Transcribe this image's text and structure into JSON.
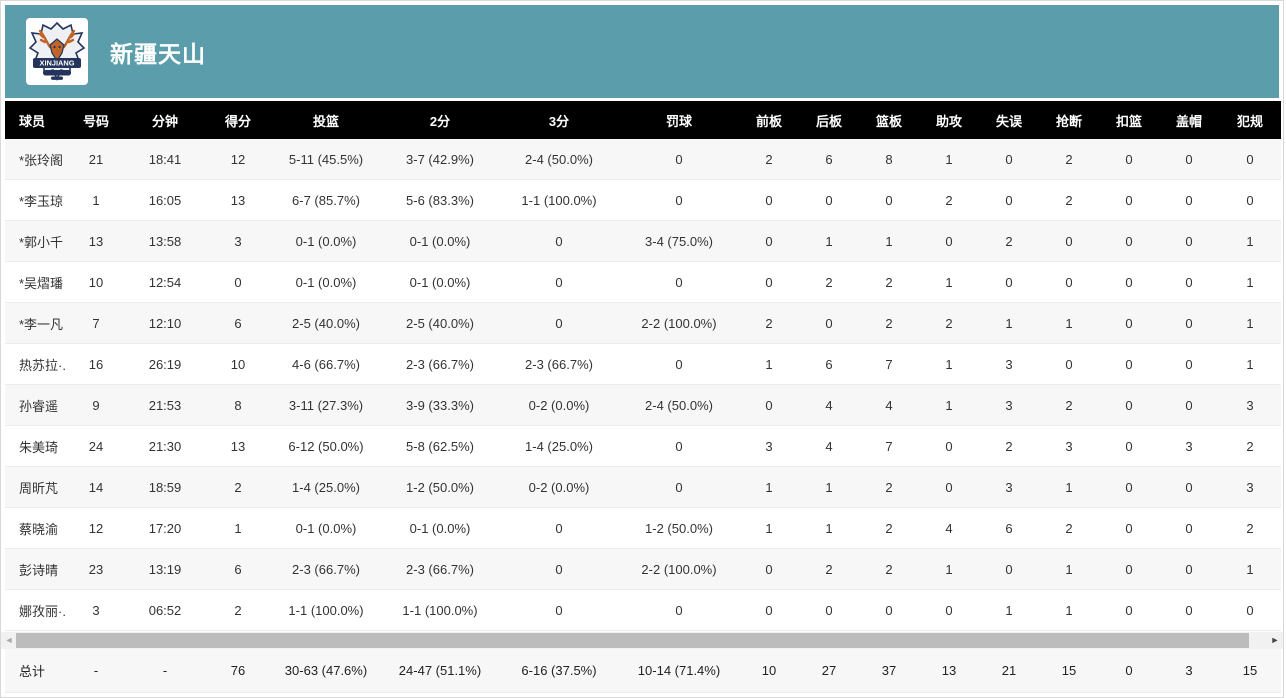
{
  "header": {
    "team_name": "新疆天山",
    "logo_text": "XINJIANG"
  },
  "colors": {
    "banner_teal": "#5c9dac",
    "table_header_bg": "#000000",
    "zebra_row": "#f7f7f7",
    "total_row_bg": "#ececec",
    "logo_navy": "#24345c",
    "logo_orange": "#c06428"
  },
  "table": {
    "columns": [
      {
        "key": "player",
        "label": "球员"
      },
      {
        "key": "number",
        "label": "号码"
      },
      {
        "key": "minutes",
        "label": "分钟"
      },
      {
        "key": "points",
        "label": "得分"
      },
      {
        "key": "fg",
        "label": "投篮"
      },
      {
        "key": "2pt",
        "label": "2分"
      },
      {
        "key": "3pt",
        "label": "3分"
      },
      {
        "key": "ft",
        "label": "罚球"
      },
      {
        "key": "oreb",
        "label": "前板"
      },
      {
        "key": "dreb",
        "label": "后板"
      },
      {
        "key": "reb",
        "label": "篮板"
      },
      {
        "key": "ast",
        "label": "助攻"
      },
      {
        "key": "tov",
        "label": "失误"
      },
      {
        "key": "stl",
        "label": "抢断"
      },
      {
        "key": "dunk",
        "label": "扣篮"
      },
      {
        "key": "blk",
        "label": "盖帽"
      },
      {
        "key": "pf",
        "label": "犯规"
      }
    ],
    "rows": [
      [
        "*张玲阁",
        "21",
        "18:41",
        "12",
        "5-11 (45.5%)",
        "3-7 (42.9%)",
        "2-4 (50.0%)",
        "0",
        "2",
        "6",
        "8",
        "1",
        "0",
        "2",
        "0",
        "0",
        "0"
      ],
      [
        "*李玉琼",
        "1",
        "16:05",
        "13",
        "6-7 (85.7%)",
        "5-6 (83.3%)",
        "1-1 (100.0%)",
        "0",
        "0",
        "0",
        "0",
        "2",
        "0",
        "2",
        "0",
        "0",
        "0"
      ],
      [
        "*郭小千",
        "13",
        "13:58",
        "3",
        "0-1 (0.0%)",
        "0-1 (0.0%)",
        "0",
        "3-4 (75.0%)",
        "0",
        "1",
        "1",
        "0",
        "2",
        "0",
        "0",
        "0",
        "1"
      ],
      [
        "*吴熠璠",
        "10",
        "12:54",
        "0",
        "0-1 (0.0%)",
        "0-1 (0.0%)",
        "0",
        "0",
        "0",
        "2",
        "2",
        "1",
        "0",
        "0",
        "0",
        "0",
        "1"
      ],
      [
        "*李一凡",
        "7",
        "12:10",
        "6",
        "2-5 (40.0%)",
        "2-5 (40.0%)",
        "0",
        "2-2 (100.0%)",
        "2",
        "0",
        "2",
        "2",
        "1",
        "1",
        "0",
        "0",
        "1"
      ],
      [
        "热苏拉·...",
        "16",
        "26:19",
        "10",
        "4-6 (66.7%)",
        "2-3 (66.7%)",
        "2-3 (66.7%)",
        "0",
        "1",
        "6",
        "7",
        "1",
        "3",
        "0",
        "0",
        "0",
        "1"
      ],
      [
        "孙睿遥",
        "9",
        "21:53",
        "8",
        "3-11 (27.3%)",
        "3-9 (33.3%)",
        "0-2 (0.0%)",
        "2-4 (50.0%)",
        "0",
        "4",
        "4",
        "1",
        "3",
        "2",
        "0",
        "0",
        "3"
      ],
      [
        "朱美琦",
        "24",
        "21:30",
        "13",
        "6-12 (50.0%)",
        "5-8 (62.5%)",
        "1-4 (25.0%)",
        "0",
        "3",
        "4",
        "7",
        "0",
        "2",
        "3",
        "0",
        "3",
        "2"
      ],
      [
        "周昕芃",
        "14",
        "18:59",
        "2",
        "1-4 (25.0%)",
        "1-2 (50.0%)",
        "0-2 (0.0%)",
        "0",
        "1",
        "1",
        "2",
        "0",
        "3",
        "1",
        "0",
        "0",
        "3"
      ],
      [
        "蔡晓渝",
        "12",
        "17:20",
        "1",
        "0-1 (0.0%)",
        "0-1 (0.0%)",
        "0",
        "1-2 (50.0%)",
        "1",
        "1",
        "2",
        "4",
        "6",
        "2",
        "0",
        "0",
        "2"
      ],
      [
        "彭诗晴",
        "23",
        "13:19",
        "6",
        "2-3 (66.7%)",
        "2-3 (66.7%)",
        "0",
        "2-2 (100.0%)",
        "0",
        "2",
        "2",
        "1",
        "0",
        "1",
        "0",
        "0",
        "1"
      ],
      [
        "娜孜丽·...",
        "3",
        "06:52",
        "2",
        "1-1 (100.0%)",
        "1-1 (100.0%)",
        "0",
        "0",
        "0",
        "0",
        "0",
        "0",
        "1",
        "1",
        "0",
        "0",
        "0"
      ]
    ],
    "total": [
      "总计",
      "-",
      "-",
      "76",
      "30-63 (47.6%)",
      "24-47 (51.1%)",
      "6-16 (37.5%)",
      "10-14 (71.4%)",
      "10",
      "27",
      "37",
      "13",
      "21",
      "15",
      "0",
      "3",
      "15"
    ]
  },
  "scrollbar": {
    "left_arrow": "◄",
    "right_arrow": "►"
  }
}
